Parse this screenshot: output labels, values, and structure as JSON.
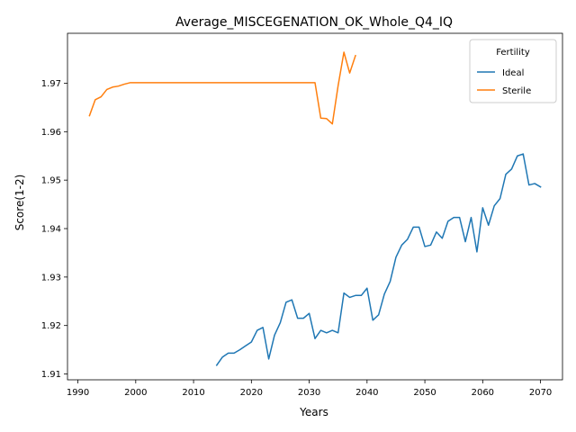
{
  "chart_data": {
    "type": "line",
    "title": "Average_MISCEGENATION_OK_Whole_Q4_IQ",
    "xlabel": "Years",
    "ylabel": "Score(1-2)",
    "xlim": [
      1988.2,
      2073.8
    ],
    "ylim": [
      1.9088,
      1.9803
    ],
    "xticks": [
      1990,
      2000,
      2010,
      2020,
      2030,
      2040,
      2050,
      2060,
      2070
    ],
    "yticks": [
      1.91,
      1.92,
      1.93,
      1.94,
      1.95,
      1.96,
      1.97
    ],
    "xtick_labels": [
      "1990",
      "2000",
      "2010",
      "2020",
      "2030",
      "2040",
      "2050",
      "2060",
      "2070"
    ],
    "ytick_labels": [
      "1.91",
      "1.92",
      "1.93",
      "1.94",
      "1.95",
      "1.96",
      "1.97"
    ],
    "grid": false,
    "legend": {
      "title": "Fertility",
      "placement": "top-right"
    },
    "series": [
      {
        "name": "Ideal",
        "color": "#1f77b4",
        "x": [
          2014,
          2015,
          2016,
          2017,
          2018,
          2019,
          2020,
          2021,
          2022,
          2023,
          2024,
          2025,
          2026,
          2027,
          2028,
          2029,
          2030,
          2031,
          2032,
          2033,
          2034,
          2035,
          2036,
          2037,
          2038,
          2039,
          2040,
          2041,
          2042,
          2043,
          2044,
          2045,
          2046,
          2047,
          2048,
          2049,
          2050,
          2051,
          2052,
          2053,
          2054,
          2055,
          2056,
          2057,
          2058,
          2059,
          2060,
          2061,
          2062,
          2063,
          2064,
          2065,
          2066,
          2067,
          2068,
          2069,
          2070
        ],
        "y": [
          1.9118,
          1.9135,
          1.9143,
          1.9143,
          1.915,
          1.9158,
          1.9166,
          1.919,
          1.9196,
          1.9131,
          1.918,
          1.9206,
          1.9248,
          1.9253,
          1.9215,
          1.9215,
          1.9225,
          1.9173,
          1.919,
          1.9185,
          1.919,
          1.9185,
          1.9267,
          1.9258,
          1.9262,
          1.9262,
          1.9277,
          1.9211,
          1.9222,
          1.9265,
          1.9291,
          1.9341,
          1.9366,
          1.9378,
          1.9403,
          1.9403,
          1.9363,
          1.9366,
          1.9393,
          1.938,
          1.9415,
          1.9423,
          1.9423,
          1.9373,
          1.9423,
          1.9352,
          1.9443,
          1.9407,
          1.9447,
          1.9462,
          1.9512,
          1.9523,
          1.955,
          1.9554,
          1.949,
          1.9493,
          1.9486
        ]
      },
      {
        "name": "Sterile",
        "color": "#ff7f0e",
        "x": [
          1992,
          1993,
          1994,
          1995,
          1996,
          1997,
          1998,
          1999,
          2000,
          2001,
          2002,
          2003,
          2004,
          2005,
          2006,
          2007,
          2008,
          2009,
          2010,
          2011,
          2012,
          2013,
          2014,
          2015,
          2016,
          2017,
          2018,
          2019,
          2020,
          2021,
          2022,
          2023,
          2024,
          2025,
          2026,
          2027,
          2028,
          2029,
          2030,
          2031,
          2032,
          2033,
          2034,
          2035,
          2036,
          2037,
          2038
        ],
        "y": [
          1.9633,
          1.9666,
          1.9672,
          1.9687,
          1.9692,
          1.9694,
          1.9698,
          1.9701,
          1.9701,
          1.9701,
          1.9701,
          1.9701,
          1.9701,
          1.9701,
          1.9701,
          1.9701,
          1.9701,
          1.9701,
          1.9701,
          1.9701,
          1.9701,
          1.9701,
          1.9701,
          1.9701,
          1.9701,
          1.9701,
          1.9701,
          1.9701,
          1.9701,
          1.9701,
          1.9701,
          1.9701,
          1.9701,
          1.9701,
          1.9701,
          1.9701,
          1.9701,
          1.9701,
          1.9701,
          1.9701,
          1.9628,
          1.9627,
          1.9616,
          1.9695,
          1.9764,
          1.9721,
          1.9757
        ]
      }
    ]
  }
}
